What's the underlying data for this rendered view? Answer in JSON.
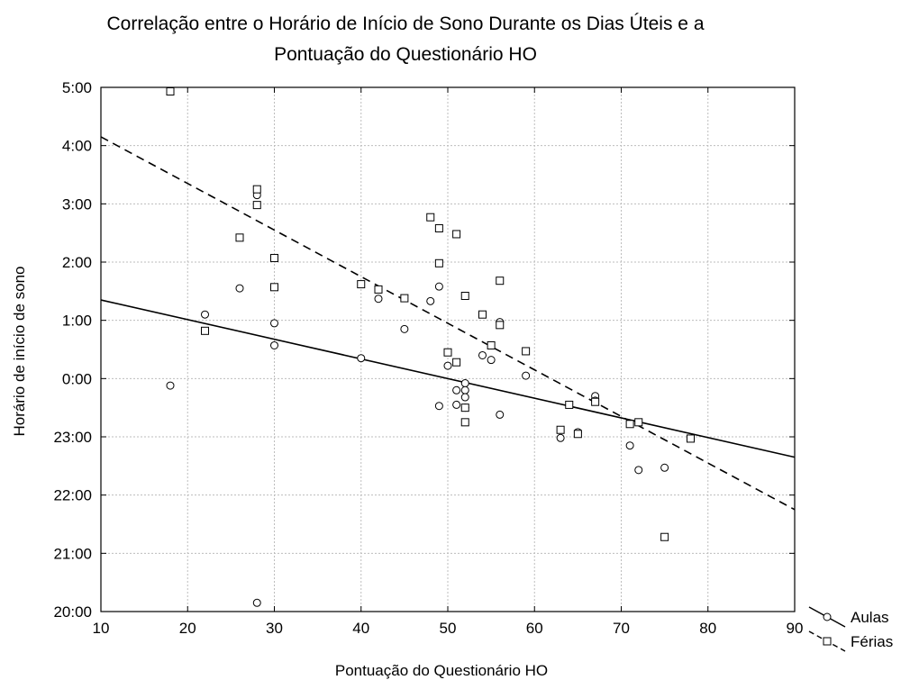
{
  "chart_data": {
    "type": "scatter",
    "title_lines": [
      "Correlação entre o Horário de Início de Sono Durante os Dias Úteis e a",
      "Pontuação do Questionário HO"
    ],
    "xlabel": "Pontuação do Questionário HO",
    "ylabel": "Horário de início de sono",
    "xlim": [
      10,
      90
    ],
    "ylim": [
      -4,
      5
    ],
    "x_ticks": [
      10,
      20,
      30,
      40,
      50,
      60,
      70,
      80,
      90
    ],
    "x_tick_labels": [
      "10",
      "20",
      "30",
      "40",
      "50",
      "60",
      "70",
      "80",
      "90"
    ],
    "y_ticks": [
      -4,
      -3,
      -2,
      -1,
      0,
      1,
      2,
      3,
      4,
      5
    ],
    "y_tick_labels": [
      "20:00",
      "21:00",
      "22:00",
      "23:00",
      "0:00",
      "1:00",
      "2:00",
      "3:00",
      "4:00",
      "5:00"
    ],
    "grid": true,
    "legend_position": "bottom-right-outside",
    "series": [
      {
        "name": "Aulas",
        "marker": "circle",
        "line_style": "solid",
        "fit_line": [
          [
            10,
            1.35
          ],
          [
            90,
            -1.35
          ]
        ],
        "points": [
          [
            18,
            -0.12
          ],
          [
            22,
            1.1
          ],
          [
            26,
            1.55
          ],
          [
            28,
            3.15
          ],
          [
            28,
            -3.85
          ],
          [
            30,
            0.95
          ],
          [
            30,
            0.57
          ],
          [
            40,
            0.35
          ],
          [
            42,
            1.37
          ],
          [
            45,
            0.85
          ],
          [
            48,
            1.33
          ],
          [
            49,
            1.58
          ],
          [
            49,
            -0.47
          ],
          [
            50,
            0.22
          ],
          [
            51,
            -0.2
          ],
          [
            51,
            -0.45
          ],
          [
            52,
            -0.08
          ],
          [
            52,
            -0.2
          ],
          [
            52,
            -0.32
          ],
          [
            52,
            -0.5
          ],
          [
            54,
            0.4
          ],
          [
            55,
            0.32
          ],
          [
            56,
            0.97
          ],
          [
            56,
            -0.62
          ],
          [
            59,
            0.05
          ],
          [
            63,
            -1.02
          ],
          [
            65,
            -0.92
          ],
          [
            67,
            -0.3
          ],
          [
            67,
            -0.38
          ],
          [
            71,
            -1.15
          ],
          [
            72,
            -1.57
          ],
          [
            75,
            -1.53
          ]
        ]
      },
      {
        "name": "Férias",
        "marker": "square",
        "line_style": "dashed",
        "fit_line": [
          [
            10,
            4.15
          ],
          [
            90,
            -2.25
          ]
        ],
        "points": [
          [
            18,
            4.93
          ],
          [
            22,
            0.82
          ],
          [
            26,
            2.42
          ],
          [
            28,
            3.25
          ],
          [
            28,
            2.98
          ],
          [
            30,
            2.07
          ],
          [
            30,
            1.57
          ],
          [
            40,
            1.62
          ],
          [
            42,
            1.53
          ],
          [
            45,
            1.38
          ],
          [
            48,
            2.77
          ],
          [
            49,
            2.58
          ],
          [
            49,
            1.98
          ],
          [
            50,
            0.45
          ],
          [
            51,
            2.48
          ],
          [
            51,
            0.28
          ],
          [
            52,
            1.42
          ],
          [
            52,
            -0.5
          ],
          [
            52,
            -0.75
          ],
          [
            54,
            1.1
          ],
          [
            55,
            0.57
          ],
          [
            56,
            1.68
          ],
          [
            56,
            0.92
          ],
          [
            59,
            0.47
          ],
          [
            63,
            -0.88
          ],
          [
            64,
            -0.45
          ],
          [
            65,
            -0.95
          ],
          [
            67,
            -0.4
          ],
          [
            71,
            -0.78
          ],
          [
            72,
            -0.75
          ],
          [
            75,
            -2.72
          ],
          [
            78,
            -1.03
          ]
        ]
      }
    ]
  }
}
